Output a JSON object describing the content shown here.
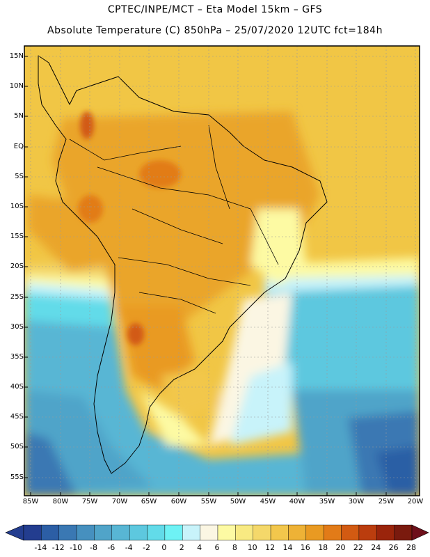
{
  "header": {
    "title_line1": "CPTEC/INPE/MCT –  Eta Model 15km – GFS",
    "title_line2": "Absolute Temperature (C) 850hPa – 25/07/2020 12UTC fct=184h"
  },
  "map": {
    "lat_labels": [
      "15N",
      "10N",
      "5N",
      "EQ",
      "5S",
      "10S",
      "15S",
      "20S",
      "25S",
      "30S",
      "35S",
      "40S",
      "45S",
      "50S",
      "55S"
    ],
    "lon_labels": [
      "85W",
      "80W",
      "75W",
      "70W",
      "65W",
      "60W",
      "55W",
      "50W",
      "45W",
      "40W",
      "35W",
      "30W",
      "25W",
      "20W"
    ]
  },
  "colorbar": {
    "labels": [
      "-14",
      "-12",
      "-10",
      "-8",
      "-6",
      "-4",
      "-2",
      "0",
      "2",
      "4",
      "6",
      "8",
      "10",
      "12",
      "14",
      "16",
      "18",
      "20",
      "22",
      "24",
      "26",
      "28"
    ],
    "colors": [
      "#233d8f",
      "#2c5ea5",
      "#3a78b3",
      "#4690bf",
      "#50a4c9",
      "#58b6d4",
      "#5dc8df",
      "#62dbe9",
      "#6ef2f5",
      "#c8f3fa",
      "#fbf6e3",
      "#fdfaa3",
      "#f8ea82",
      "#f4d86a",
      "#f2c74c",
      "#eeb236",
      "#e99a22",
      "#e27b18",
      "#d25a12",
      "#bb3d0e",
      "#9a240b",
      "#7a1a0e"
    ],
    "under_color": "#233d8f",
    "over_color": "#6e0f1a"
  },
  "legend_colors": {
    "ocean_warm": "#f0c43c",
    "land_warm": "#eaa52c",
    "cold_deep": "#2c5ea5",
    "coast_line": "#000000"
  }
}
